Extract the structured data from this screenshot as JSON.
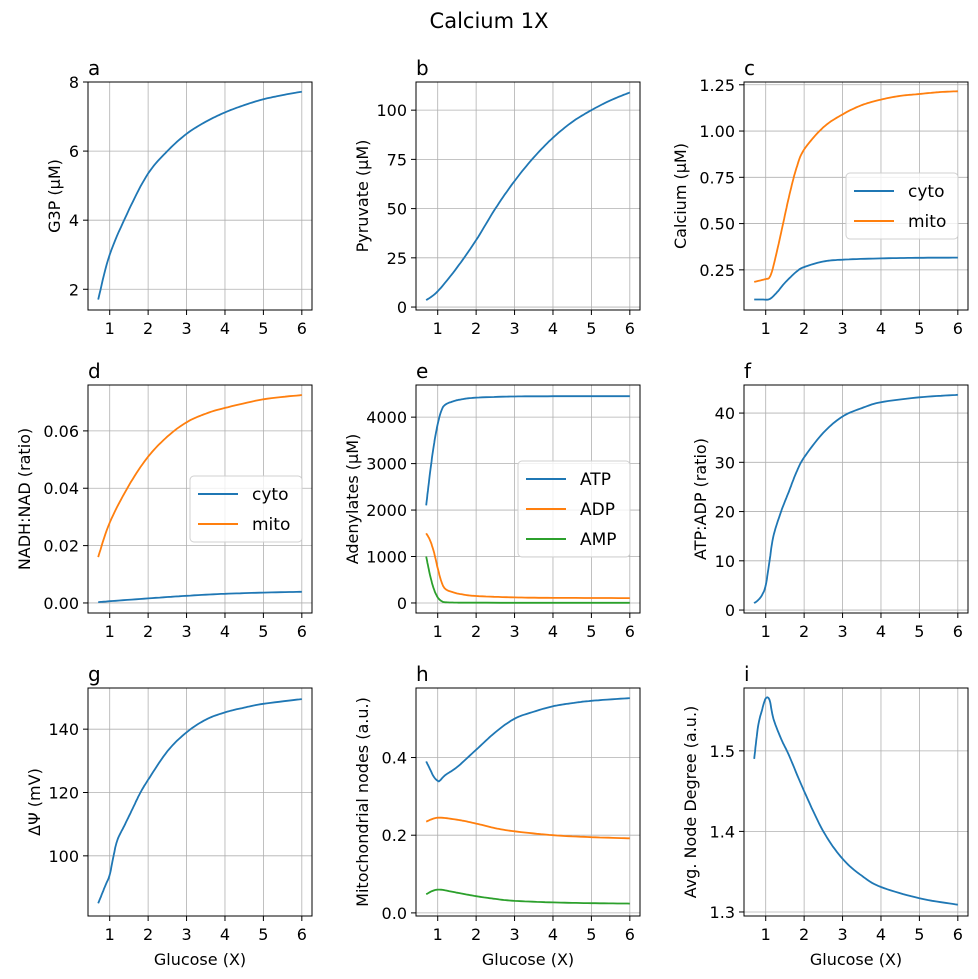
{
  "title": "Calcium 1X",
  "colors": {
    "blue": "#1f77b4",
    "orange": "#ff7f0e",
    "green": "#2ca02c"
  },
  "chart_data": [
    {
      "panel": "a",
      "type": "line",
      "xlabel": "",
      "ylabel": "G3P (µM)",
      "xlim": [
        0.435,
        6.265
      ],
      "ylim": [
        1.4,
        8.0
      ],
      "xticks": [
        1,
        2,
        3,
        4,
        5,
        6
      ],
      "yticks": [
        2,
        4,
        6,
        8
      ],
      "ytick_labels": [
        "2",
        "4",
        "6",
        "8"
      ],
      "grid": true,
      "legend": null,
      "series": [
        {
          "color": "#1f77b4",
          "x": [
            0.7,
            1,
            1.5,
            2,
            2.5,
            3,
            3.5,
            4,
            4.5,
            5,
            5.5,
            6
          ],
          "y": [
            1.7,
            3.0,
            4.3,
            5.35,
            6.0,
            6.5,
            6.85,
            7.12,
            7.33,
            7.5,
            7.62,
            7.72
          ]
        }
      ]
    },
    {
      "panel": "b",
      "type": "line",
      "xlabel": "",
      "ylabel": "Pyruvate (µM)",
      "xlim": [
        0.435,
        6.265
      ],
      "ylim": [
        -1.5,
        114.3
      ],
      "xticks": [
        1,
        2,
        3,
        4,
        5,
        6
      ],
      "yticks": [
        0,
        25,
        50,
        75,
        100
      ],
      "ytick_labels": [
        "0",
        "25",
        "50",
        "75",
        "100"
      ],
      "grid": true,
      "legend": null,
      "series": [
        {
          "color": "#1f77b4",
          "x": [
            0.7,
            1,
            1.5,
            2,
            2.5,
            3,
            3.5,
            4,
            4.5,
            5,
            5.5,
            6
          ],
          "y": [
            3.5,
            8,
            20,
            34,
            50,
            64,
            76,
            86,
            94,
            100,
            105,
            109
          ]
        }
      ]
    },
    {
      "panel": "c",
      "type": "line",
      "xlabel": "",
      "ylabel": "Calcium (µM)",
      "xlim": [
        0.435,
        6.265
      ],
      "ylim": [
        0.033,
        1.265
      ],
      "xticks": [
        1,
        2,
        3,
        4,
        5,
        6
      ],
      "yticks": [
        0.25,
        0.5,
        0.75,
        1.0,
        1.25
      ],
      "ytick_labels": [
        "0.25",
        "0.50",
        "0.75",
        "1.00",
        "1.25"
      ],
      "grid": true,
      "legend": "center-right",
      "series": [
        {
          "name": "cyto",
          "color": "#1f77b4",
          "x": [
            0.7,
            0.9,
            1.1,
            1.3,
            1.5,
            1.8,
            2,
            2.5,
            3,
            4,
            5,
            6
          ],
          "y": [
            0.09,
            0.09,
            0.092,
            0.13,
            0.18,
            0.24,
            0.265,
            0.295,
            0.305,
            0.312,
            0.315,
            0.316
          ]
        },
        {
          "name": "mito",
          "color": "#ff7f0e",
          "x": [
            0.7,
            1.0,
            1.1,
            1.2,
            1.4,
            1.6,
            1.8,
            2,
            2.5,
            3,
            3.5,
            4,
            4.5,
            5,
            5.5,
            6
          ],
          "y": [
            0.185,
            0.2,
            0.21,
            0.27,
            0.45,
            0.64,
            0.8,
            0.9,
            1.02,
            1.09,
            1.14,
            1.17,
            1.19,
            1.2,
            1.21,
            1.215
          ]
        }
      ]
    },
    {
      "panel": "d",
      "type": "line",
      "xlabel": "",
      "ylabel": "NADH:NAD (ratio)",
      "xlim": [
        0.435,
        6.265
      ],
      "ylim": [
        -0.0035,
        0.076
      ],
      "xticks": [
        1,
        2,
        3,
        4,
        5,
        6
      ],
      "yticks": [
        0,
        0.02,
        0.04,
        0.06
      ],
      "ytick_labels": [
        "0.00",
        "0.02",
        "0.04",
        "0.06"
      ],
      "grid": true,
      "legend": "center-right",
      "series": [
        {
          "name": "cyto",
          "color": "#1f77b4",
          "x": [
            0.7,
            1,
            2,
            3,
            4,
            5,
            6
          ],
          "y": [
            0.0003,
            0.0006,
            0.0016,
            0.0025,
            0.0032,
            0.0036,
            0.0039
          ]
        },
        {
          "name": "mito",
          "color": "#ff7f0e",
          "x": [
            0.7,
            1,
            1.5,
            2,
            2.5,
            3,
            3.5,
            4,
            5,
            6
          ],
          "y": [
            0.016,
            0.028,
            0.041,
            0.051,
            0.058,
            0.063,
            0.066,
            0.068,
            0.071,
            0.0725
          ]
        }
      ]
    },
    {
      "panel": "e",
      "type": "line",
      "xlabel": "",
      "ylabel": "Adenylates (µM)",
      "xlim": [
        0.435,
        6.265
      ],
      "ylim": [
        -216,
        4692
      ],
      "xticks": [
        1,
        2,
        3,
        4,
        5,
        6
      ],
      "yticks": [
        0,
        1000,
        2000,
        3000,
        4000
      ],
      "ytick_labels": [
        "0",
        "1000",
        "2000",
        "3000",
        "4000"
      ],
      "grid": true,
      "legend": "center-right",
      "series": [
        {
          "name": "ATP",
          "color": "#1f77b4",
          "x": [
            0.7,
            0.8,
            0.9,
            1.0,
            1.1,
            1.2,
            1.4,
            1.6,
            2,
            3,
            4,
            6
          ],
          "y": [
            2100,
            2800,
            3400,
            3850,
            4150,
            4270,
            4340,
            4380,
            4420,
            4445,
            4450,
            4450
          ]
        },
        {
          "name": "ADP",
          "color": "#ff7f0e",
          "x": [
            0.7,
            0.8,
            0.9,
            1.0,
            1.1,
            1.2,
            1.4,
            1.6,
            2,
            3,
            4,
            6
          ],
          "y": [
            1500,
            1350,
            1100,
            750,
            450,
            300,
            230,
            190,
            150,
            120,
            110,
            105
          ]
        },
        {
          "name": "AMP",
          "color": "#2ca02c",
          "x": [
            0.7,
            0.8,
            0.9,
            1.0,
            1.1,
            1.2,
            1.5,
            2,
            6
          ],
          "y": [
            1000,
            600,
            300,
            120,
            40,
            15,
            8,
            5,
            3
          ]
        }
      ]
    },
    {
      "panel": "f",
      "type": "line",
      "xlabel": "",
      "ylabel": "ATP:ADP (ratio)",
      "xlim": [
        0.435,
        6.265
      ],
      "ylim": [
        -0.6,
        45.7
      ],
      "xticks": [
        1,
        2,
        3,
        4,
        5,
        6
      ],
      "yticks": [
        0,
        10,
        20,
        30,
        40
      ],
      "ytick_labels": [
        "0",
        "10",
        "20",
        "30",
        "40"
      ],
      "grid": true,
      "legend": null,
      "series": [
        {
          "color": "#1f77b4",
          "x": [
            0.7,
            0.8,
            0.9,
            1.0,
            1.1,
            1.2,
            1.4,
            1.6,
            1.8,
            2,
            2.5,
            3,
            3.5,
            4,
            5,
            6
          ],
          "y": [
            1.4,
            2,
            3,
            5,
            10,
            15,
            20,
            24,
            28,
            31,
            36,
            39.3,
            41,
            42.2,
            43.2,
            43.7
          ]
        }
      ]
    },
    {
      "panel": "g",
      "type": "line",
      "xlabel": "Glucose (X)",
      "ylabel": "ΔΨ (mV)",
      "xlim": [
        0.435,
        6.265
      ],
      "ylim": [
        81,
        153
      ],
      "xticks": [
        1,
        2,
        3,
        4,
        5,
        6
      ],
      "yticks": [
        100,
        120,
        140
      ],
      "ytick_labels": [
        "100",
        "120",
        "140"
      ],
      "grid": true,
      "legend": null,
      "series": [
        {
          "color": "#1f77b4",
          "x": [
            0.7,
            0.8,
            0.9,
            1.0,
            1.1,
            1.2,
            1.4,
            1.6,
            1.8,
            2,
            2.5,
            3,
            3.5,
            4,
            4.5,
            5,
            6
          ],
          "y": [
            85,
            88,
            91,
            94,
            100,
            105,
            110,
            115,
            120,
            124,
            133,
            139,
            143,
            145.3,
            146.8,
            148,
            149.5
          ]
        }
      ]
    },
    {
      "panel": "h",
      "type": "line",
      "xlabel": "Glucose (X)",
      "ylabel": "Mitochondrial nodes (a.u.)",
      "xlim": [
        0.435,
        6.265
      ],
      "ylim": [
        -0.008,
        0.579
      ],
      "xticks": [
        1,
        2,
        3,
        4,
        5,
        6
      ],
      "yticks": [
        0,
        0.2,
        0.4
      ],
      "ytick_labels": [
        "0.0",
        "0.2",
        "0.4"
      ],
      "grid": true,
      "legend": null,
      "series": [
        {
          "color": "#1f77b4",
          "x": [
            0.7,
            0.8,
            0.9,
            1.0,
            1.05,
            1.2,
            1.5,
            2,
            2.5,
            3,
            3.5,
            4,
            4.5,
            5,
            6
          ],
          "y": [
            0.39,
            0.37,
            0.35,
            0.34,
            0.34,
            0.355,
            0.375,
            0.42,
            0.465,
            0.5,
            0.518,
            0.532,
            0.54,
            0.546,
            0.553
          ]
        },
        {
          "color": "#ff7f0e",
          "x": [
            0.7,
            1,
            1.5,
            2,
            2.5,
            3,
            4,
            5,
            6
          ],
          "y": [
            0.235,
            0.245,
            0.24,
            0.23,
            0.218,
            0.21,
            0.2,
            0.195,
            0.192
          ]
        },
        {
          "color": "#2ca02c",
          "x": [
            0.7,
            1,
            1.5,
            2,
            2.5,
            3,
            4,
            5,
            6
          ],
          "y": [
            0.048,
            0.06,
            0.052,
            0.043,
            0.036,
            0.031,
            0.027,
            0.025,
            0.024
          ]
        }
      ]
    },
    {
      "panel": "i",
      "type": "line",
      "xlabel": "Glucose (X)",
      "ylabel": "Avg. Node Degree (a.u.)",
      "xlim": [
        0.435,
        6.265
      ],
      "ylim": [
        1.295,
        1.578
      ],
      "xticks": [
        1,
        2,
        3,
        4,
        5,
        6
      ],
      "yticks": [
        1.3,
        1.4,
        1.5
      ],
      "ytick_labels": [
        "1.3",
        "1.4",
        "1.5"
      ],
      "grid": true,
      "legend": null,
      "series": [
        {
          "color": "#1f77b4",
          "x": [
            0.7,
            0.8,
            0.9,
            1.0,
            1.1,
            1.2,
            1.4,
            1.6,
            2,
            2.5,
            3,
            3.5,
            4,
            5,
            6
          ],
          "y": [
            1.49,
            1.53,
            1.55,
            1.565,
            1.563,
            1.54,
            1.515,
            1.495,
            1.45,
            1.4,
            1.366,
            1.345,
            1.331,
            1.317,
            1.309
          ]
        }
      ]
    }
  ]
}
